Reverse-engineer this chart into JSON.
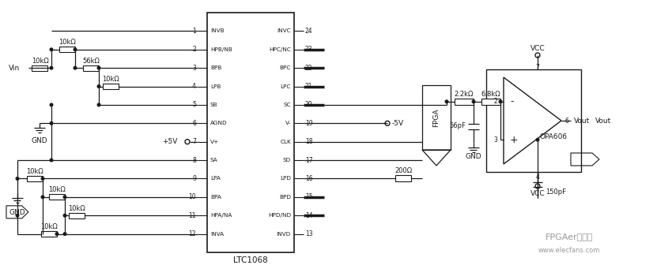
{
  "background_color": "#ffffff",
  "fig_width": 8.5,
  "fig_height": 3.55,
  "dpi": 100,
  "ic_label": "LTC1068",
  "watermark": "FPGAer俱乐部",
  "watermark2": "www.elecfans.com",
  "left_pins": {
    "1": "INVB",
    "2": "HPB/NB",
    "3": "BPB",
    "4": "LPB",
    "5": "SB",
    "6": "AGND",
    "7": "V+",
    "8": "SA",
    "9": "LPA",
    "10": "BPA",
    "11": "HPA/NA",
    "12": "INVA"
  },
  "right_pins": {
    "24": "INVC",
    "23": "HPC/NC",
    "22": "BPC",
    "21": "LPC",
    "20": "SC",
    "19": "V-",
    "18": "CLK",
    "17": "SD",
    "16": "LPD",
    "15": "BPD",
    "14": "HPD/ND",
    "13": "INVD"
  },
  "thick_right": [
    22,
    21,
    20,
    23,
    15,
    14
  ]
}
